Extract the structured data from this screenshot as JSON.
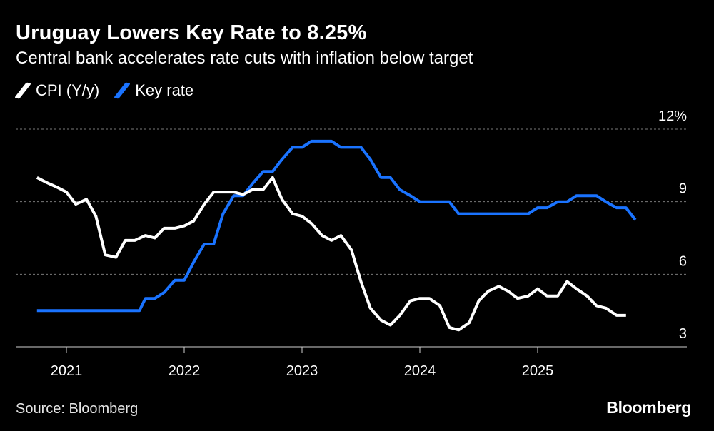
{
  "header": {
    "title": "Uruguay Lowers Key Rate to 8.25%",
    "subtitle": "Central bank accelerates rate cuts with inflation below target"
  },
  "footer": {
    "source": "Source: Bloomberg",
    "brand": "Bloomberg"
  },
  "colors": {
    "background": "#000000",
    "cpi": "#ffffff",
    "key_rate": "#1a73ff",
    "grid": "#7a7a7a",
    "axis": "#cfcfcf",
    "text": "#ffffff"
  },
  "chart_data": {
    "type": "line",
    "title": "Uruguay Lowers Key Rate to 8.25%",
    "subtitle": "Central bank accelerates rate cuts with inflation below target",
    "xlabel": "",
    "ylabel": "",
    "ylim": [
      3,
      12
    ],
    "xlim": [
      2020.73,
      2026.25
    ],
    "y_ticks": [
      {
        "value": 3,
        "label": "3"
      },
      {
        "value": 6,
        "label": "6"
      },
      {
        "value": 9,
        "label": "9"
      },
      {
        "value": 12,
        "label": "12%"
      }
    ],
    "x_ticks": [
      {
        "value": 2021.0,
        "label": "2021"
      },
      {
        "value": 2022.0,
        "label": "2022"
      },
      {
        "value": 2023.0,
        "label": "2023"
      },
      {
        "value": 2024.0,
        "label": "2024"
      },
      {
        "value": 2025.0,
        "label": "2025"
      }
    ],
    "grid": true,
    "legend_position": "top-left",
    "series": [
      {
        "name": "CPI (Y/y)",
        "color": "#ffffff",
        "points": [
          [
            2020.75,
            10.0
          ],
          [
            2020.83,
            9.8
          ],
          [
            2020.92,
            9.6
          ],
          [
            2021.0,
            9.4
          ],
          [
            2021.08,
            8.9
          ],
          [
            2021.17,
            9.1
          ],
          [
            2021.25,
            8.4
          ],
          [
            2021.33,
            6.8
          ],
          [
            2021.42,
            6.7
          ],
          [
            2021.5,
            7.4
          ],
          [
            2021.58,
            7.4
          ],
          [
            2021.67,
            7.6
          ],
          [
            2021.75,
            7.5
          ],
          [
            2021.83,
            7.9
          ],
          [
            2021.92,
            7.9
          ],
          [
            2022.0,
            8.0
          ],
          [
            2022.08,
            8.2
          ],
          [
            2022.17,
            8.9
          ],
          [
            2022.25,
            9.4
          ],
          [
            2022.33,
            9.4
          ],
          [
            2022.42,
            9.4
          ],
          [
            2022.5,
            9.3
          ],
          [
            2022.58,
            9.5
          ],
          [
            2022.67,
            9.5
          ],
          [
            2022.75,
            10.0
          ],
          [
            2022.83,
            9.1
          ],
          [
            2022.92,
            8.5
          ],
          [
            2023.0,
            8.4
          ],
          [
            2023.08,
            8.1
          ],
          [
            2023.17,
            7.6
          ],
          [
            2023.25,
            7.4
          ],
          [
            2023.33,
            7.6
          ],
          [
            2023.42,
            7.0
          ],
          [
            2023.5,
            5.7
          ],
          [
            2023.58,
            4.6
          ],
          [
            2023.67,
            4.1
          ],
          [
            2023.75,
            3.9
          ],
          [
            2023.83,
            4.3
          ],
          [
            2023.92,
            4.9
          ],
          [
            2024.0,
            5.0
          ],
          [
            2024.08,
            5.0
          ],
          [
            2024.17,
            4.7
          ],
          [
            2024.25,
            3.8
          ],
          [
            2024.33,
            3.7
          ],
          [
            2024.42,
            4.0
          ],
          [
            2024.5,
            4.9
          ],
          [
            2024.58,
            5.3
          ],
          [
            2024.67,
            5.5
          ],
          [
            2024.75,
            5.3
          ],
          [
            2024.83,
            5.0
          ],
          [
            2024.92,
            5.1
          ],
          [
            2025.0,
            5.4
          ],
          [
            2025.08,
            5.1
          ],
          [
            2025.17,
            5.1
          ],
          [
            2025.25,
            5.7
          ],
          [
            2025.33,
            5.4
          ],
          [
            2025.42,
            5.1
          ],
          [
            2025.5,
            4.7
          ],
          [
            2025.58,
            4.6
          ],
          [
            2025.67,
            4.3
          ],
          [
            2025.75,
            4.3
          ]
        ]
      },
      {
        "name": "Key rate",
        "color": "#1a73ff",
        "points": [
          [
            2020.75,
            4.5
          ],
          [
            2021.58,
            4.5
          ],
          [
            2021.62,
            4.5
          ],
          [
            2021.67,
            5.0
          ],
          [
            2021.75,
            5.0
          ],
          [
            2021.83,
            5.25
          ],
          [
            2021.92,
            5.75
          ],
          [
            2022.0,
            5.75
          ],
          [
            2022.08,
            6.5
          ],
          [
            2022.17,
            7.25
          ],
          [
            2022.25,
            7.25
          ],
          [
            2022.33,
            8.5
          ],
          [
            2022.42,
            9.25
          ],
          [
            2022.5,
            9.25
          ],
          [
            2022.58,
            9.75
          ],
          [
            2022.67,
            10.25
          ],
          [
            2022.75,
            10.25
          ],
          [
            2022.83,
            10.75
          ],
          [
            2022.92,
            11.25
          ],
          [
            2023.0,
            11.25
          ],
          [
            2023.08,
            11.5
          ],
          [
            2023.25,
            11.5
          ],
          [
            2023.33,
            11.25
          ],
          [
            2023.5,
            11.25
          ],
          [
            2023.58,
            10.75
          ],
          [
            2023.67,
            10.0
          ],
          [
            2023.75,
            10.0
          ],
          [
            2023.83,
            9.5
          ],
          [
            2023.92,
            9.25
          ],
          [
            2024.0,
            9.0
          ],
          [
            2024.25,
            9.0
          ],
          [
            2024.33,
            8.5
          ],
          [
            2024.92,
            8.5
          ],
          [
            2025.0,
            8.75
          ],
          [
            2025.08,
            8.75
          ],
          [
            2025.17,
            9.0
          ],
          [
            2025.25,
            9.0
          ],
          [
            2025.33,
            9.25
          ],
          [
            2025.5,
            9.25
          ],
          [
            2025.58,
            9.0
          ],
          [
            2025.67,
            8.75
          ],
          [
            2025.75,
            8.75
          ],
          [
            2025.83,
            8.25
          ]
        ]
      }
    ]
  }
}
